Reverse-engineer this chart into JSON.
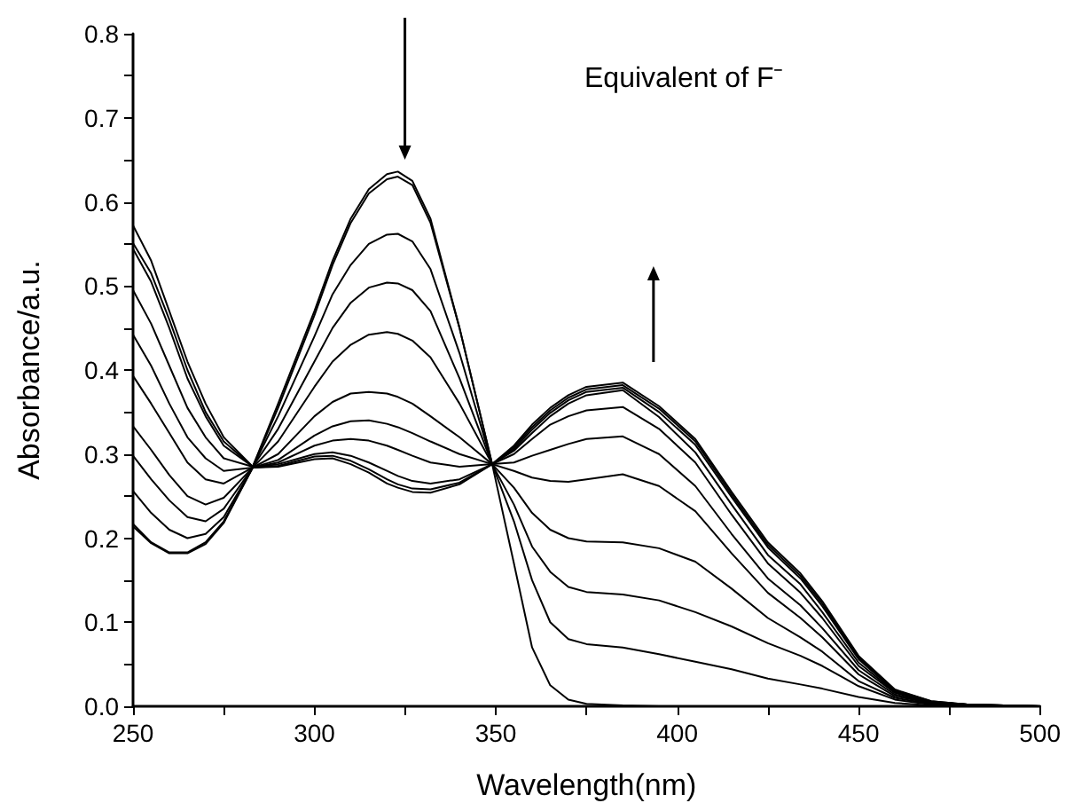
{
  "chart_data": {
    "type": "line",
    "xlabel": "Wavelength(nm)",
    "ylabel": "Absorbance/a.u.",
    "annotations": [
      "Equivalent of F⁻"
    ],
    "x": [
      250,
      255,
      260,
      265,
      270,
      275,
      283,
      290,
      300,
      305,
      310,
      315,
      320,
      323,
      327,
      332,
      340,
      349,
      355,
      360,
      365,
      370,
      375,
      385,
      395,
      405,
      415,
      425,
      434,
      440,
      450,
      460,
      470,
      480,
      500
    ],
    "series": [
      {
        "color": "#000000",
        "values": [
          0.572,
          0.53,
          0.47,
          0.41,
          0.36,
          0.32,
          0.285,
          0.36,
          0.47,
          0.53,
          0.58,
          0.615,
          0.633,
          0.636,
          0.625,
          0.58,
          0.45,
          0.288,
          0.17,
          0.07,
          0.025,
          0.008,
          0.003,
          0.001,
          0,
          0,
          0,
          0,
          0,
          0,
          0,
          0,
          0,
          0,
          0
        ]
      },
      {
        "color": "#000000",
        "values": [
          0.551,
          0.515,
          0.46,
          0.4,
          0.35,
          0.315,
          0.285,
          0.355,
          0.465,
          0.525,
          0.575,
          0.61,
          0.627,
          0.63,
          0.62,
          0.575,
          0.45,
          0.288,
          0.22,
          0.15,
          0.1,
          0.08,
          0.074,
          0.07,
          0.062,
          0.053,
          0.044,
          0.033,
          0.026,
          0.021,
          0.011,
          0.004,
          0.001,
          0,
          0
        ]
      },
      {
        "color": "#000000",
        "values": [
          0.544,
          0.505,
          0.45,
          0.39,
          0.345,
          0.31,
          0.285,
          0.345,
          0.44,
          0.49,
          0.525,
          0.55,
          0.561,
          0.562,
          0.553,
          0.52,
          0.42,
          0.288,
          0.24,
          0.19,
          0.16,
          0.142,
          0.136,
          0.133,
          0.126,
          0.112,
          0.095,
          0.075,
          0.06,
          0.048,
          0.024,
          0.008,
          0.002,
          0.001,
          0
        ]
      },
      {
        "color": "#000000",
        "values": [
          0.495,
          0.455,
          0.405,
          0.355,
          0.32,
          0.295,
          0.285,
          0.33,
          0.41,
          0.45,
          0.48,
          0.498,
          0.504,
          0.503,
          0.495,
          0.47,
          0.39,
          0.288,
          0.26,
          0.23,
          0.21,
          0.2,
          0.196,
          0.195,
          0.188,
          0.172,
          0.14,
          0.105,
          0.082,
          0.065,
          0.03,
          0.01,
          0.003,
          0.001,
          0
        ]
      },
      {
        "color": "#000000",
        "values": [
          0.442,
          0.405,
          0.36,
          0.32,
          0.295,
          0.28,
          0.284,
          0.315,
          0.38,
          0.41,
          0.43,
          0.442,
          0.445,
          0.443,
          0.435,
          0.415,
          0.36,
          0.288,
          0.28,
          0.272,
          0.268,
          0.267,
          0.27,
          0.276,
          0.262,
          0.232,
          0.182,
          0.135,
          0.105,
          0.082,
          0.038,
          0.012,
          0.004,
          0.001,
          0
        ]
      },
      {
        "color": "#000000",
        "values": [
          0.393,
          0.36,
          0.325,
          0.29,
          0.27,
          0.265,
          0.284,
          0.3,
          0.345,
          0.362,
          0.372,
          0.374,
          0.372,
          0.368,
          0.36,
          0.345,
          0.32,
          0.288,
          0.29,
          0.298,
          0.305,
          0.312,
          0.318,
          0.321,
          0.3,
          0.262,
          0.205,
          0.152,
          0.12,
          0.093,
          0.043,
          0.014,
          0.004,
          0.001,
          0
        ]
      },
      {
        "color": "#000000",
        "values": [
          0.333,
          0.305,
          0.275,
          0.25,
          0.24,
          0.248,
          0.284,
          0.293,
          0.322,
          0.333,
          0.339,
          0.34,
          0.336,
          0.332,
          0.325,
          0.315,
          0.3,
          0.288,
          0.3,
          0.318,
          0.335,
          0.345,
          0.352,
          0.356,
          0.33,
          0.29,
          0.228,
          0.17,
          0.135,
          0.105,
          0.048,
          0.016,
          0.005,
          0.002,
          0
        ]
      },
      {
        "color": "#000000",
        "values": [
          0.298,
          0.27,
          0.245,
          0.225,
          0.22,
          0.235,
          0.284,
          0.29,
          0.31,
          0.316,
          0.318,
          0.316,
          0.31,
          0.305,
          0.298,
          0.29,
          0.285,
          0.288,
          0.304,
          0.325,
          0.345,
          0.36,
          0.37,
          0.376,
          0.344,
          0.302,
          0.24,
          0.18,
          0.145,
          0.112,
          0.052,
          0.017,
          0.005,
          0.002,
          0
        ]
      },
      {
        "color": "#000000",
        "values": [
          0.256,
          0.23,
          0.21,
          0.2,
          0.205,
          0.225,
          0.284,
          0.288,
          0.3,
          0.302,
          0.298,
          0.29,
          0.28,
          0.274,
          0.268,
          0.265,
          0.27,
          0.288,
          0.306,
          0.329,
          0.349,
          0.364,
          0.374,
          0.379,
          0.35,
          0.311,
          0.249,
          0.189,
          0.152,
          0.119,
          0.056,
          0.018,
          0.005,
          0.002,
          0
        ]
      },
      {
        "color": "#000000",
        "values": [
          0.217,
          0.195,
          0.183,
          0.183,
          0.195,
          0.22,
          0.284,
          0.286,
          0.297,
          0.298,
          0.292,
          0.282,
          0.27,
          0.264,
          0.259,
          0.258,
          0.266,
          0.288,
          0.308,
          0.332,
          0.352,
          0.367,
          0.377,
          0.382,
          0.354,
          0.315,
          0.252,
          0.192,
          0.155,
          0.122,
          0.058,
          0.019,
          0.006,
          0.002,
          0
        ]
      },
      {
        "color": "#000000",
        "values": [
          0.214,
          0.194,
          0.182,
          0.182,
          0.193,
          0.218,
          0.284,
          0.285,
          0.294,
          0.295,
          0.288,
          0.278,
          0.265,
          0.26,
          0.255,
          0.254,
          0.264,
          0.288,
          0.31,
          0.335,
          0.355,
          0.37,
          0.38,
          0.385,
          0.357,
          0.318,
          0.255,
          0.195,
          0.158,
          0.125,
          0.06,
          0.02,
          0.006,
          0.002,
          0
        ]
      }
    ],
    "xlim": [
      250,
      500
    ],
    "xticks": [
      250,
      {
        "value": 275,
        "label": null
      },
      300,
      {
        "value": 325,
        "label": null
      },
      350,
      {
        "value": 375,
        "label": null
      },
      400,
      {
        "value": 425,
        "label": null
      },
      450,
      {
        "value": 475,
        "label": null
      },
      500
    ],
    "ylim": [
      0,
      0.8
    ],
    "yticks": [
      {
        "value": 0,
        "label": "0.0"
      },
      {
        "value": 0.05,
        "label": null
      },
      0.1,
      {
        "value": 0.15,
        "label": null
      },
      0.2,
      {
        "value": 0.25,
        "label": null
      },
      0.3,
      {
        "value": 0.35,
        "label": null
      },
      0.4,
      {
        "value": 0.45,
        "label": null
      },
      0.5,
      {
        "value": 0.55,
        "label": null
      },
      0.6,
      {
        "value": 0.65,
        "label": null
      },
      0.7,
      {
        "value": 0.75,
        "label": null
      },
      0.8
    ],
    "grid": false,
    "marker": "none"
  }
}
